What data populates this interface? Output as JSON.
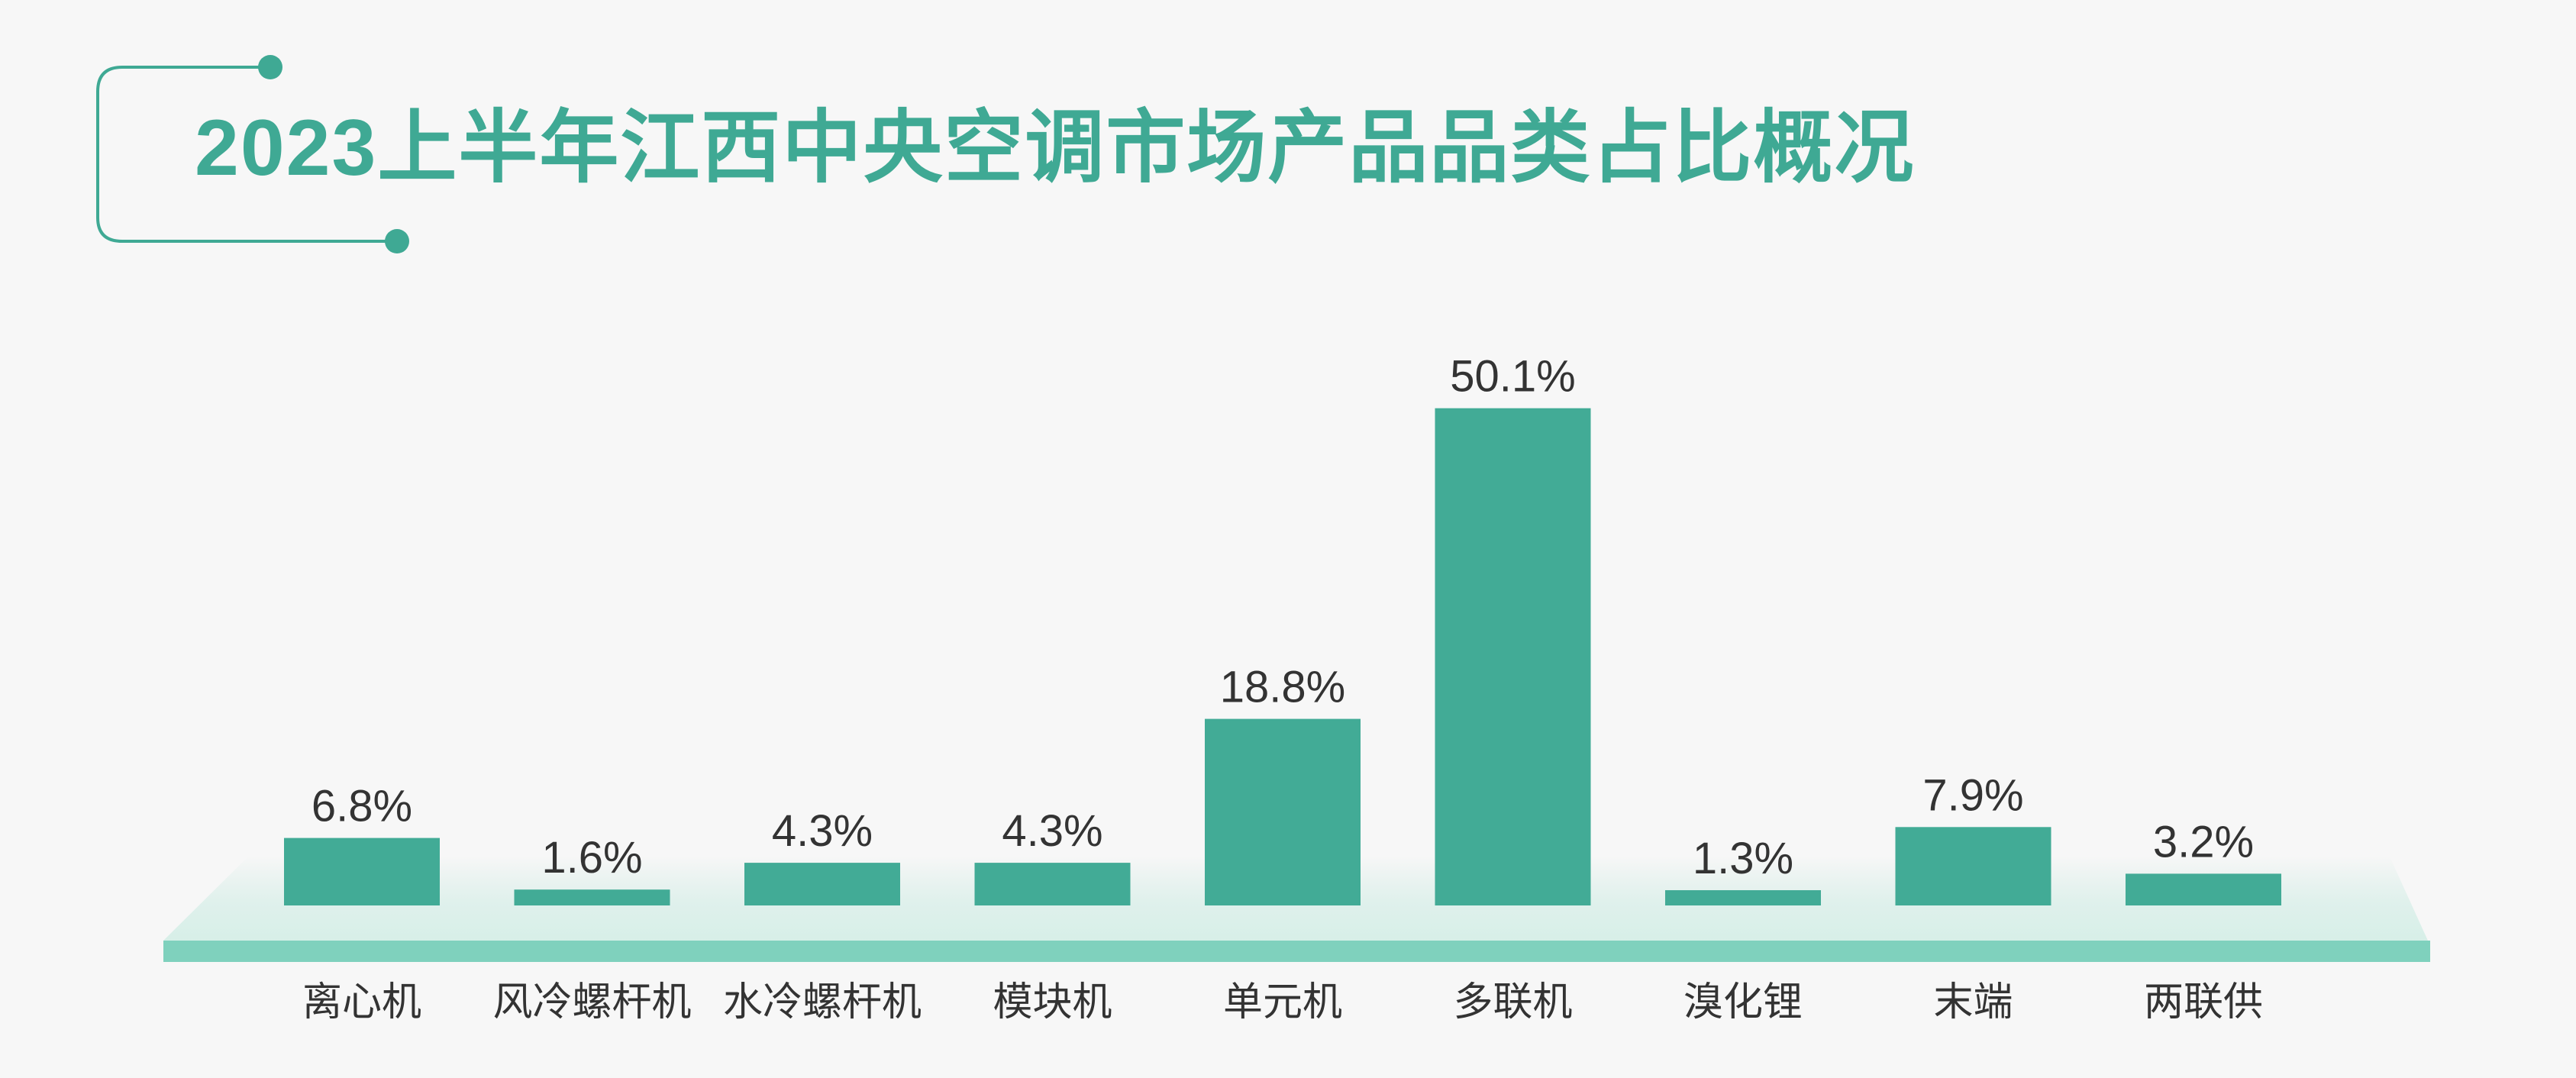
{
  "title": "2023上半年江西中央空调市场产品品类占比概况",
  "colors": {
    "bar": "#42ab96",
    "accent": "#3fa994",
    "platform": "#7fd1bd",
    "label": "#333333"
  },
  "chart_data": {
    "type": "bar",
    "title": "2023上半年江西中央空调市场产品品类占比概况",
    "categories": [
      "离心机",
      "风冷螺杆机",
      "水冷螺杆机",
      "模块机",
      "单元机",
      "多联机",
      "溴化锂",
      "末端",
      "两联供"
    ],
    "values": [
      6.8,
      1.6,
      4.3,
      4.3,
      18.8,
      50.1,
      1.3,
      7.9,
      3.2
    ],
    "value_labels": [
      "6.8%",
      "1.6%",
      "4.3%",
      "4.3%",
      "18.8%",
      "50.1%",
      "1.3%",
      "7.9%",
      "3.2%"
    ],
    "unit": "%",
    "xlabel": "",
    "ylabel": "",
    "ylim": [
      0,
      55
    ],
    "grid": false,
    "legend": "none"
  }
}
